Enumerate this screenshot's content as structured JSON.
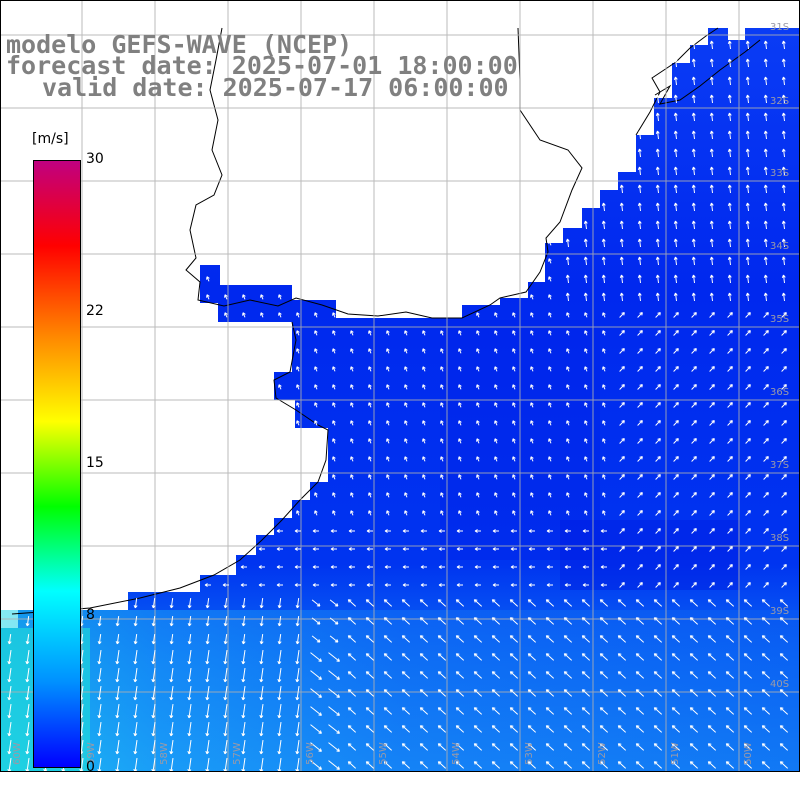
{
  "title": {
    "line1": "modelo GEFS-WAVE (NCEP)",
    "line2": "forecast date: 2025-07-01 18:00:00",
    "line3": "valid date: 2025-07-17 06:00:00"
  },
  "colorbar": {
    "unit": "[m/s]",
    "ticks": [
      "30",
      "22",
      "15",
      "8",
      "0"
    ],
    "tick_values": [
      30,
      22,
      15,
      8,
      0
    ],
    "vmin": 0,
    "vmax": 30,
    "colors": [
      "#0000ff",
      "#0090ff",
      "#00ffff",
      "#00ff00",
      "#ffff00",
      "#ff8800",
      "#ff0000",
      "#c00080"
    ]
  },
  "lat_labels": [
    "31S",
    "32S",
    "33S",
    "34S",
    "35S",
    "36S",
    "37S",
    "38S",
    "39S",
    "40S"
  ],
  "lon_labels": [
    "60W",
    "59W",
    "58W",
    "57W",
    "56W",
    "55W",
    "54W",
    "53W",
    "52W",
    "51W",
    "50W"
  ],
  "colors": {
    "land": "#ffffff",
    "grid": "#b0b0b0",
    "coast": "#000000",
    "title": "#808080"
  }
}
